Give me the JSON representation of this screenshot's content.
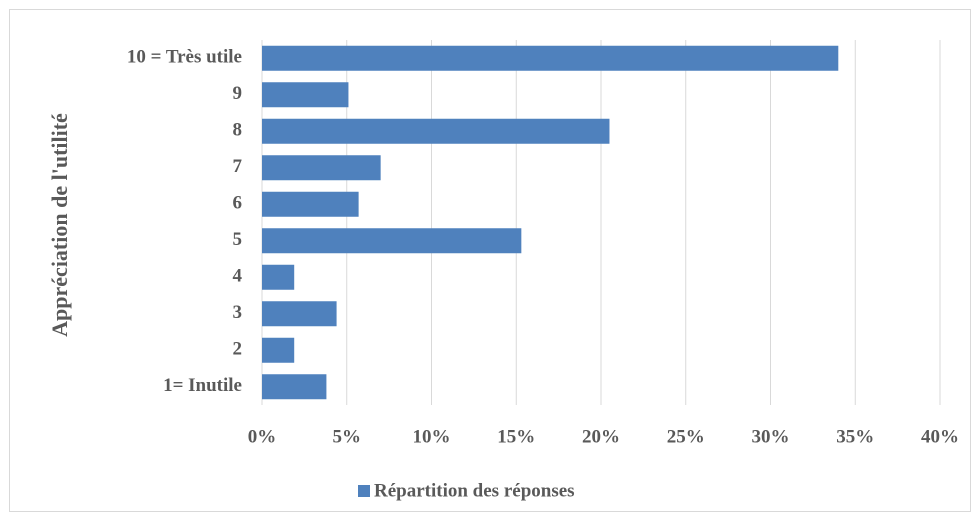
{
  "chart_data": {
    "type": "bar",
    "orientation": "horizontal",
    "y_label": "Appréciation de l'utilité",
    "categories": [
      "1= Inutile",
      "2",
      "3",
      "4",
      "5",
      "6",
      "7",
      "8",
      "9",
      "10 = Très utile"
    ],
    "series": [
      {
        "name": "Répartition des réponses",
        "color": "#4f81bd",
        "values": [
          3.8,
          1.9,
          4.4,
          1.9,
          15.3,
          5.7,
          7.0,
          20.5,
          5.1,
          34.0
        ]
      }
    ],
    "xlim": [
      0,
      40
    ],
    "xticks": [
      {
        "value": 0,
        "label": "0%"
      },
      {
        "value": 5,
        "label": "5%"
      },
      {
        "value": 10,
        "label": "10%"
      },
      {
        "value": 15,
        "label": "15%"
      },
      {
        "value": 20,
        "label": "20%"
      },
      {
        "value": 25,
        "label": "25%"
      },
      {
        "value": 30,
        "label": "30%"
      },
      {
        "value": 35,
        "label": "35%"
      },
      {
        "value": 40,
        "label": "40%"
      }
    ],
    "grid": true,
    "legend": "bottom"
  }
}
